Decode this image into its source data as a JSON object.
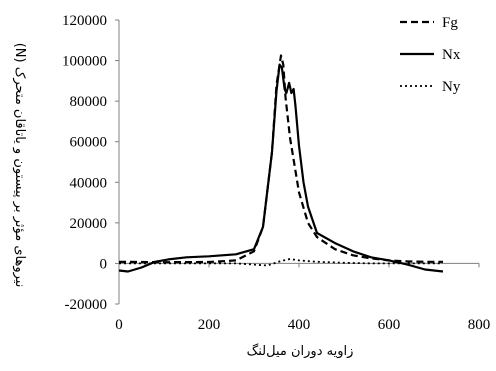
{
  "chart_data": {
    "type": "line",
    "xlabel": "زاویه دوران میل‌لنگ",
    "ylabel": "نیروهای مؤثر بر پیستون و یاتاقان متحرک (N)",
    "xlim": [
      0,
      800
    ],
    "ylim": [
      -20000,
      120000
    ],
    "xticks": [
      "0",
      "200",
      "400",
      "600",
      "800"
    ],
    "yticks": [
      "-20000",
      "0",
      "20000",
      "40000",
      "60000",
      "80000",
      "100000",
      "120000"
    ],
    "grid": false,
    "legend_position": "top-right",
    "series": [
      {
        "name": "Fg",
        "style": "dashed",
        "color": "#000000",
        "x": [
          0,
          100,
          200,
          260,
          300,
          320,
          340,
          350,
          360,
          365,
          370,
          380,
          400,
          420,
          440,
          480,
          520,
          560,
          600,
          640,
          680,
          720
        ],
        "y": [
          800,
          600,
          700,
          1500,
          6000,
          18000,
          55000,
          88000,
          102500,
          98000,
          82000,
          62000,
          35000,
          20000,
          13000,
          7000,
          4000,
          2500,
          1500,
          1000,
          800,
          800
        ]
      },
      {
        "name": "Nx",
        "style": "solid",
        "color": "#000000",
        "x": [
          0,
          20,
          50,
          80,
          110,
          150,
          200,
          260,
          300,
          320,
          340,
          350,
          357,
          362,
          368,
          372,
          378,
          383,
          388,
          392,
          400,
          410,
          420,
          440,
          480,
          520,
          560,
          600,
          640,
          680,
          720
        ],
        "y": [
          -3500,
          -4000,
          -2000,
          800,
          2000,
          3000,
          3500,
          4500,
          7000,
          18000,
          55000,
          85000,
          98000,
          96500,
          86000,
          84000,
          89000,
          84000,
          86000,
          78000,
          58000,
          40000,
          28000,
          15000,
          10000,
          6000,
          3000,
          1500,
          -500,
          -3000,
          -4000
        ]
      },
      {
        "name": "Ny",
        "style": "dotted",
        "color": "#000000",
        "x": [
          0,
          100,
          200,
          260,
          300,
          330,
          360,
          380,
          400,
          440,
          500,
          560,
          620,
          680,
          720
        ],
        "y": [
          0,
          0,
          0,
          0,
          -600,
          -1000,
          1200,
          2200,
          1500,
          800,
          300,
          0,
          0,
          0,
          0
        ]
      }
    ]
  }
}
